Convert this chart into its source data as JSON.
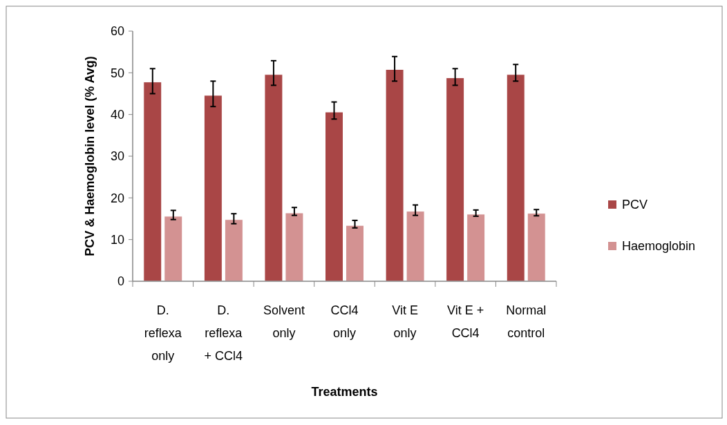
{
  "chart_data": {
    "type": "bar",
    "xlabel": "Treatments",
    "ylabel": "PCV & Haemoglobin level (% Avg)",
    "categories": [
      "D. reflexa only",
      "D. reflexa + CCl4",
      "Solvent only",
      "CCl4 only",
      "Vit E only",
      "Vit E + CCl4",
      "Normal control"
    ],
    "series": [
      {
        "name": "PCV",
        "color": "#a94646",
        "values": [
          47.8,
          44.6,
          49.6,
          40.6,
          50.8,
          48.8,
          49.6
        ],
        "errors": [
          [
            45.0,
            51.0
          ],
          [
            41.9,
            48.0
          ],
          [
            47.0,
            52.9
          ],
          [
            38.9,
            43.0
          ],
          [
            48.0,
            53.9
          ],
          [
            47.0,
            51.0
          ],
          [
            48.0,
            52.0
          ]
        ]
      },
      {
        "name": "Haemoglobin",
        "color": "#d39292",
        "values": [
          15.6,
          14.8,
          16.4,
          13.4,
          16.8,
          16.1,
          16.3
        ],
        "errors": [
          [
            14.8,
            17.0
          ],
          [
            13.8,
            16.2
          ],
          [
            15.8,
            17.7
          ],
          [
            12.8,
            14.6
          ],
          [
            15.8,
            18.3
          ],
          [
            15.6,
            17.1
          ],
          [
            15.7,
            17.2
          ]
        ]
      }
    ],
    "ylim": [
      0,
      60
    ],
    "yticks": [
      0,
      10,
      20,
      30,
      40,
      50,
      60
    ],
    "grid": false,
    "legend": "right"
  }
}
